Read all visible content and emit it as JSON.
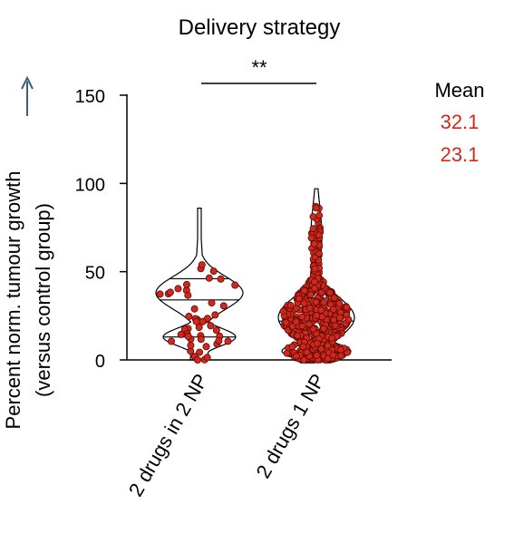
{
  "chart_data": {
    "type": "violin",
    "title": "Delivery strategy",
    "ylabel_line1": "Percent norm. tumour growth",
    "ylabel_line2": "(versus control group)",
    "ylim": [
      0,
      150
    ],
    "yticks": [
      "0",
      "50",
      "100",
      "150"
    ],
    "categories": [
      "2 drugs in 2 NP",
      "2 drugs 1 NP"
    ],
    "significance": "**",
    "legend": {
      "title": "Mean",
      "values": [
        "32.1",
        "23.1"
      ]
    },
    "groups": [
      {
        "category": "2 drugs in 2 NP",
        "mean": 32.1,
        "n": 48,
        "min": 0,
        "max": 86,
        "quartiles": [
          13,
          34,
          46
        ],
        "point_color": "#d0281c"
      },
      {
        "category": "2 drugs 1 NP",
        "mean": 23.1,
        "n": 640,
        "min": 0,
        "max": 97,
        "quartiles": [
          8,
          22,
          35
        ],
        "point_color": "#d0281c"
      }
    ]
  },
  "colors": {
    "accent": "#d0281c",
    "axis": "#000000",
    "arrow": "#3a5f78"
  }
}
